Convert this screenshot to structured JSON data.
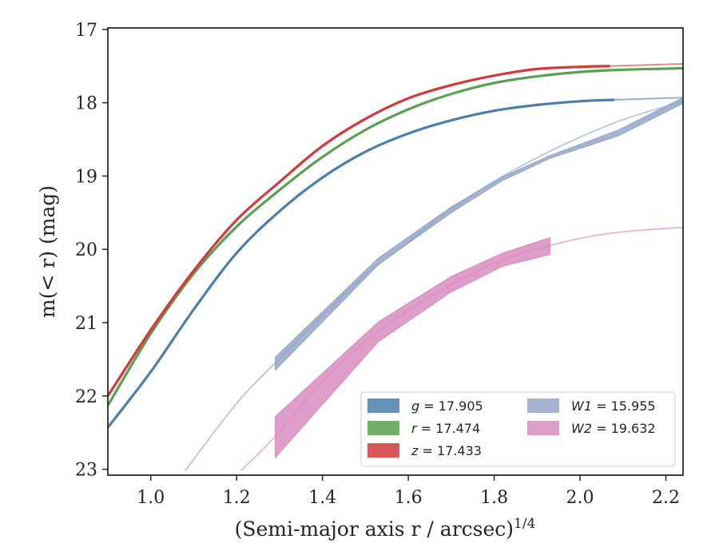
{
  "chart_data": {
    "type": "line",
    "xlabel": "(Semi-major axis r / arcsec)",
    "xlabel_sup": "1/4",
    "ylabel": "m(< r) (mag)",
    "xlim": [
      0.9,
      2.24
    ],
    "ylim": [
      23.08,
      16.98
    ],
    "y_inverted": true,
    "xticks": [
      "1.0",
      "1.2",
      "1.4",
      "1.6",
      "1.8",
      "2.0",
      "2.2"
    ],
    "yticks": [
      "17",
      "18",
      "19",
      "20",
      "21",
      "22",
      "23"
    ],
    "grid": false,
    "legend_position": "lower-right",
    "series": [
      {
        "name": "g = 17.905",
        "legend_var": "g",
        "legend_value": "= 17.905",
        "color": "#4c7fac",
        "x": [
          0.9,
          1.0,
          1.1,
          1.2,
          1.3,
          1.4,
          1.5,
          1.6,
          1.7,
          1.8,
          1.9,
          2.0,
          2.08
        ],
        "y": [
          22.43,
          21.67,
          20.82,
          20.05,
          19.48,
          19.02,
          18.67,
          18.42,
          18.24,
          18.11,
          18.03,
          17.98,
          17.96
        ],
        "model_x": [
          2.08,
          2.24
        ],
        "model_y": [
          17.96,
          17.93
        ]
      },
      {
        "name": "r = 17.474",
        "legend_var": "r",
        "legend_value": "= 17.474",
        "color": "#59a14f",
        "x": [
          0.9,
          1.0,
          1.1,
          1.2,
          1.3,
          1.4,
          1.5,
          1.6,
          1.7,
          1.8,
          1.9,
          2.0,
          2.1,
          2.24
        ],
        "y": [
          22.13,
          21.15,
          20.33,
          19.69,
          19.19,
          18.74,
          18.37,
          18.09,
          17.88,
          17.73,
          17.64,
          17.58,
          17.55,
          17.53
        ]
      },
      {
        "name": "z = 17.433",
        "legend_var": "z",
        "legend_value": "= 17.433",
        "color": "#d13b3b",
        "x": [
          0.9,
          1.0,
          1.1,
          1.2,
          1.3,
          1.4,
          1.5,
          1.6,
          1.7,
          1.8,
          1.9,
          2.0,
          2.07
        ],
        "y": [
          22.0,
          21.1,
          20.29,
          19.6,
          19.08,
          18.59,
          18.22,
          17.94,
          17.76,
          17.63,
          17.54,
          17.51,
          17.5
        ],
        "model_x": [
          2.07,
          2.24
        ],
        "model_y": [
          17.5,
          17.47
        ]
      },
      {
        "name": "W1 = 15.955",
        "legend_var": "W1",
        "legend_value": "= 15.955",
        "color": "#95a6c9",
        "x": [
          1.29,
          1.53,
          1.7,
          1.82,
          1.93,
          2.09,
          2.24
        ],
        "y_upper": [
          21.47,
          20.12,
          19.42,
          19.01,
          18.72,
          18.37,
          17.93
        ],
        "y_lower": [
          21.65,
          20.21,
          19.5,
          19.06,
          18.76,
          18.45,
          18.01
        ],
        "model_x": [
          1.08,
          1.2,
          1.29,
          1.4,
          1.5,
          1.6,
          1.7,
          1.8,
          1.9,
          2.0,
          2.1,
          2.24
        ],
        "model_y": [
          23.02,
          22.1,
          21.55,
          20.9,
          20.35,
          19.9,
          19.45,
          19.07,
          18.75,
          18.47,
          18.23,
          17.98
        ]
      },
      {
        "name": "W2 = 19.632",
        "legend_var": "W2",
        "legend_value": "= 19.632",
        "color": "#d98cbf",
        "x": [
          1.29,
          1.53,
          1.7,
          1.82,
          1.93
        ],
        "y_upper": [
          22.28,
          20.99,
          20.37,
          20.05,
          19.84
        ],
        "y_lower": [
          22.84,
          21.26,
          20.58,
          20.23,
          20.07
        ],
        "model_x": [
          1.21,
          1.29,
          1.4,
          1.53,
          1.7,
          1.82,
          1.93,
          2.0,
          2.1,
          2.24
        ],
        "model_y": [
          23.02,
          22.55,
          21.8,
          21.12,
          20.48,
          20.14,
          19.95,
          19.85,
          19.76,
          19.7
        ]
      }
    ]
  }
}
